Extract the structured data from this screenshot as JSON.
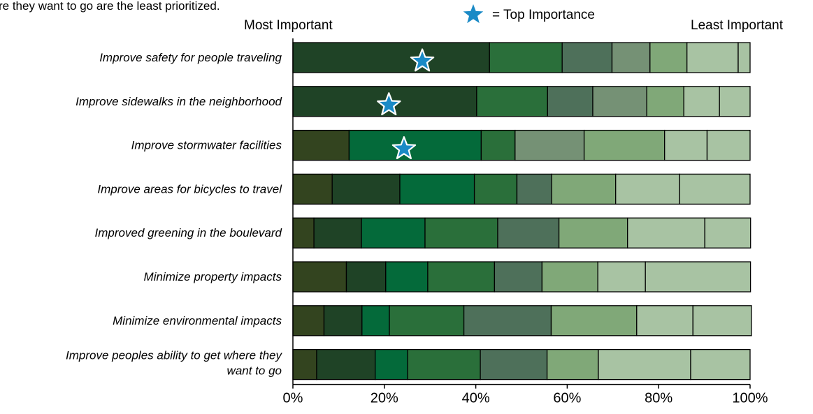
{
  "header": {
    "cut_caption": "re they want to go are the least prioritized.",
    "left_label": "Most Important",
    "right_label": "Least Important",
    "legend_text": "= Top Importance"
  },
  "chart_data": {
    "type": "bar",
    "orientation": "horizontal",
    "stacked": true,
    "percent_scale": true,
    "categories": [
      [
        "Improve safety for people traveling"
      ],
      [
        "Improve sidewalks in the neighborhood"
      ],
      [
        "Improve stormwater facilities"
      ],
      [
        "Improve areas for bicycles to travel"
      ],
      [
        "Improved greening in the boulevard"
      ],
      [
        "Minimize property impacts"
      ],
      [
        "Minimize environmental impacts"
      ],
      [
        "Improve peoples ability to get where they",
        "want to go"
      ]
    ],
    "segment_colors": [
      "#33441f",
      "#1f4326",
      "#046a3a",
      "#2a6f3a",
      "#4e705a",
      "#759175",
      "#80a878",
      "#a8c3a3"
    ],
    "series": [
      {
        "values": [
          0.0,
          0.0,
          12.3,
          8.6,
          4.6,
          11.7,
          6.8,
          5.2
        ]
      },
      {
        "values": [
          43.0,
          40.2,
          0.0,
          14.8,
          10.4,
          8.6,
          8.3,
          12.8
        ]
      },
      {
        "values": [
          0.0,
          0.0,
          28.9,
          16.3,
          13.9,
          9.2,
          6.0,
          7.1
        ]
      },
      {
        "values": [
          15.9,
          15.5,
          7.4,
          9.3,
          15.9,
          14.6,
          16.3,
          15.9
        ]
      },
      {
        "values": [
          10.9,
          9.9,
          0.0,
          7.6,
          13.4,
          10.4,
          19.1,
          14.6
        ]
      },
      {
        "values": [
          8.3,
          11.8,
          15.1,
          0.0,
          0.0,
          0.0,
          0.0,
          0.0
        ]
      },
      {
        "values": [
          8.1,
          8.1,
          17.6,
          14.0,
          15.0,
          12.2,
          18.7,
          11.2
        ]
      },
      {
        "values": [
          11.2,
          7.8,
          9.3,
          14.0,
          16.9,
          10.4,
          12.3,
          20.2
        ]
      },
      {
        "values": [
          2.6,
          6.7,
          9.4,
          15.4,
          10.0,
          23.0,
          12.8,
          13.0
        ]
      }
    ],
    "series_color_index": [
      0,
      1,
      2,
      3,
      4,
      5,
      6,
      7,
      7
    ],
    "top_importance_star": [
      28.3,
      21.0,
      24.3,
      null,
      null,
      null,
      null,
      null
    ],
    "x_ticks": [
      "0%",
      "20%",
      "40%",
      "60%",
      "80%",
      "100%"
    ],
    "xlim": [
      0,
      100
    ],
    "star_color": "#1a8ac6",
    "bar_outline_color": "#000000"
  }
}
